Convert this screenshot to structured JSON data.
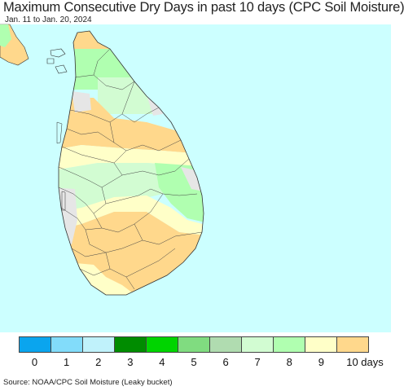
{
  "header": {
    "title": "Maximum Consecutive Dry Days in past 10 days (CPC Soil Moisture)",
    "date_range": "Jan. 11 to Jan. 20, 2024"
  },
  "map": {
    "ocean_color": "#ccffff",
    "no_data_color": "#e6e6e6",
    "region_border_color": "#444444"
  },
  "legend": {
    "labels": [
      "0",
      "1",
      "2",
      "3",
      "4",
      "5",
      "6",
      "7",
      "8",
      "9",
      "10 days"
    ],
    "colors": [
      "#0aa5ee",
      "#82dcfa",
      "#c0f2fb",
      "#008c00",
      "#00d400",
      "#80dc80",
      "#b0dcb0",
      "#d2fcd2",
      "#b0ffb0",
      "#ffffc8",
      "#ffd88c"
    ]
  },
  "footer": {
    "source": "Source: NOAA/CPC Soil Moisture (Leaky bucket)"
  }
}
